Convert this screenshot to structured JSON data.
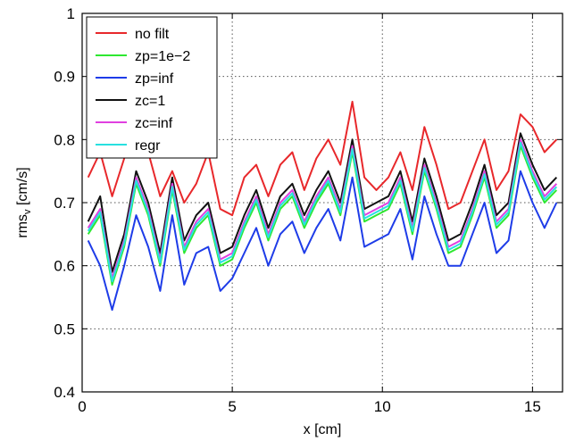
{
  "chart_data": {
    "type": "line",
    "title": "",
    "xlabel": "x [cm]",
    "ylabel_main": "rms",
    "ylabel_sub": "v",
    "ylabel_unit": " [cm/s]",
    "xlim": [
      0,
      16
    ],
    "ylim": [
      0.4,
      1.0
    ],
    "xticks": [
      0,
      5,
      10,
      15
    ],
    "xtick_labels": [
      "0",
      "5",
      "10",
      "15"
    ],
    "yticks": [
      0.4,
      0.5,
      0.6,
      0.7,
      0.8,
      0.9,
      1.0
    ],
    "ytick_labels": [
      "0.4",
      "0.5",
      "0.6",
      "0.7",
      "0.8",
      "0.9",
      "1"
    ],
    "grid": true,
    "legend_position": "top-left",
    "x": [
      0.2,
      0.6,
      1.0,
      1.4,
      1.8,
      2.2,
      2.6,
      3.0,
      3.4,
      3.8,
      4.2,
      4.6,
      5.0,
      5.4,
      5.8,
      6.2,
      6.6,
      7.0,
      7.4,
      7.8,
      8.2,
      8.6,
      9.0,
      9.4,
      9.8,
      10.2,
      10.6,
      11.0,
      11.4,
      11.8,
      12.2,
      12.6,
      13.0,
      13.4,
      13.8,
      14.2,
      14.6,
      15.0,
      15.4,
      15.8
    ],
    "series": [
      {
        "name": "no filt",
        "color": "#e8282b",
        "values": [
          0.74,
          0.78,
          0.71,
          0.77,
          0.95,
          0.78,
          0.71,
          0.75,
          0.7,
          0.73,
          0.78,
          0.69,
          0.68,
          0.74,
          0.76,
          0.71,
          0.76,
          0.78,
          0.72,
          0.77,
          0.8,
          0.76,
          0.86,
          0.74,
          0.72,
          0.74,
          0.78,
          0.72,
          0.82,
          0.76,
          0.69,
          0.7,
          0.75,
          0.8,
          0.72,
          0.75,
          0.84,
          0.82,
          0.78,
          0.8
        ]
      },
      {
        "name": "zp=1e−2",
        "color": "#2ee830",
        "values": [
          0.65,
          0.68,
          0.57,
          0.63,
          0.73,
          0.68,
          0.6,
          0.72,
          0.62,
          0.66,
          0.68,
          0.6,
          0.61,
          0.66,
          0.7,
          0.64,
          0.69,
          0.71,
          0.66,
          0.7,
          0.73,
          0.68,
          0.78,
          0.67,
          0.68,
          0.69,
          0.73,
          0.65,
          0.75,
          0.69,
          0.62,
          0.63,
          0.68,
          0.74,
          0.66,
          0.68,
          0.79,
          0.74,
          0.7,
          0.72
        ]
      },
      {
        "name": "zp=inf",
        "color": "#1e3ce8",
        "values": [
          0.64,
          0.6,
          0.53,
          0.6,
          0.68,
          0.63,
          0.56,
          0.68,
          0.57,
          0.62,
          0.63,
          0.56,
          0.58,
          0.62,
          0.66,
          0.6,
          0.65,
          0.67,
          0.62,
          0.66,
          0.69,
          0.64,
          0.74,
          0.63,
          0.64,
          0.65,
          0.69,
          0.61,
          0.71,
          0.65,
          0.6,
          0.6,
          0.65,
          0.7,
          0.62,
          0.64,
          0.75,
          0.7,
          0.66,
          0.7
        ]
      },
      {
        "name": "zc=1",
        "color": "#111111",
        "values": [
          0.67,
          0.71,
          0.59,
          0.65,
          0.75,
          0.7,
          0.62,
          0.74,
          0.64,
          0.68,
          0.7,
          0.62,
          0.63,
          0.68,
          0.72,
          0.66,
          0.71,
          0.73,
          0.68,
          0.72,
          0.75,
          0.7,
          0.8,
          0.69,
          0.7,
          0.71,
          0.75,
          0.67,
          0.77,
          0.71,
          0.64,
          0.65,
          0.7,
          0.76,
          0.68,
          0.7,
          0.81,
          0.76,
          0.72,
          0.74
        ]
      },
      {
        "name": "zc=inf",
        "color": "#e040e0",
        "values": [
          0.66,
          0.69,
          0.58,
          0.64,
          0.74,
          0.69,
          0.61,
          0.73,
          0.63,
          0.67,
          0.69,
          0.61,
          0.62,
          0.67,
          0.71,
          0.65,
          0.7,
          0.72,
          0.67,
          0.71,
          0.74,
          0.69,
          0.79,
          0.68,
          0.69,
          0.7,
          0.74,
          0.66,
          0.76,
          0.7,
          0.63,
          0.64,
          0.69,
          0.75,
          0.67,
          0.69,
          0.8,
          0.75,
          0.71,
          0.73
        ]
      },
      {
        "name": "regr",
        "color": "#28e0e0",
        "values": [
          0.655,
          0.685,
          0.575,
          0.635,
          0.735,
          0.685,
          0.605,
          0.725,
          0.625,
          0.665,
          0.685,
          0.605,
          0.615,
          0.665,
          0.705,
          0.645,
          0.695,
          0.715,
          0.665,
          0.705,
          0.735,
          0.685,
          0.785,
          0.675,
          0.685,
          0.695,
          0.735,
          0.655,
          0.755,
          0.695,
          0.625,
          0.635,
          0.685,
          0.745,
          0.665,
          0.685,
          0.795,
          0.745,
          0.705,
          0.725
        ]
      }
    ]
  }
}
